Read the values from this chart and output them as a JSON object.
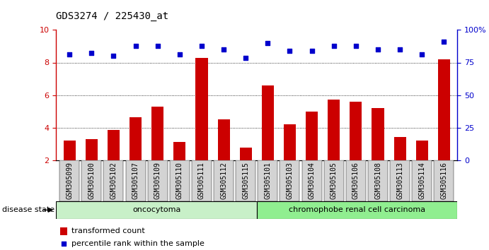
{
  "title": "GDS3274 / 225430_at",
  "categories": [
    "GSM305099",
    "GSM305100",
    "GSM305102",
    "GSM305107",
    "GSM305109",
    "GSM305110",
    "GSM305111",
    "GSM305112",
    "GSM305115",
    "GSM305101",
    "GSM305103",
    "GSM305104",
    "GSM305105",
    "GSM305106",
    "GSM305108",
    "GSM305113",
    "GSM305114",
    "GSM305116"
  ],
  "bar_values": [
    3.2,
    3.3,
    3.85,
    4.65,
    5.3,
    3.1,
    8.3,
    4.5,
    2.75,
    6.6,
    4.2,
    5.0,
    5.7,
    5.6,
    5.2,
    3.4,
    3.2,
    8.2
  ],
  "dot_values": [
    8.5,
    8.6,
    8.4,
    9.0,
    9.0,
    8.5,
    9.0,
    8.8,
    8.3,
    9.2,
    8.7,
    8.7,
    9.0,
    9.0,
    8.8,
    8.8,
    8.5,
    9.3
  ],
  "bar_color": "#cc0000",
  "dot_color": "#0000cc",
  "ylim_left": [
    2,
    10
  ],
  "ylim_right": [
    0,
    100
  ],
  "yticks_left": [
    2,
    4,
    6,
    8,
    10
  ],
  "yticks_right": [
    0,
    25,
    50,
    75,
    100
  ],
  "ytick_labels_right": [
    "0",
    "25",
    "50",
    "75",
    "100%"
  ],
  "group1_label": "oncocytoma",
  "group2_label": "chromophobe renal cell carcinoma",
  "group1_count": 9,
  "group2_count": 9,
  "disease_state_label": "disease state",
  "legend_bar_label": "transformed count",
  "legend_dot_label": "percentile rank within the sample",
  "group1_bg_color": "#c8f0c8",
  "group2_bg_color": "#90ee90",
  "xlabel_bg_color": "#d3d3d3",
  "grid_color": "#000000",
  "title_fontsize": 10,
  "axis_tick_fontsize": 8,
  "label_fontsize": 7,
  "legend_fontsize": 8,
  "group_fontsize": 8,
  "bar_width": 0.55
}
